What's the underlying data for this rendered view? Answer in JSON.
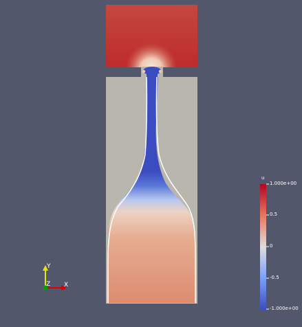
{
  "scene": {
    "background_color": "#52576b",
    "solid_color": "#b8b6ad",
    "interface_color": "#ffffff"
  },
  "colorbar": {
    "title": "u",
    "ticks": [
      "1.000e+00",
      "0.5",
      "0",
      "-0.5",
      "-1.000e+00"
    ],
    "colormap_high": "#b40426",
    "colormap_mid": "#dddddd",
    "colormap_low": "#3b4cc0"
  },
  "axes": {
    "y_label": "Y",
    "z_label": "Z",
    "x_label": "X",
    "y_color": "#e6e600",
    "x_color": "#e00000",
    "z_color": "#00a000"
  }
}
